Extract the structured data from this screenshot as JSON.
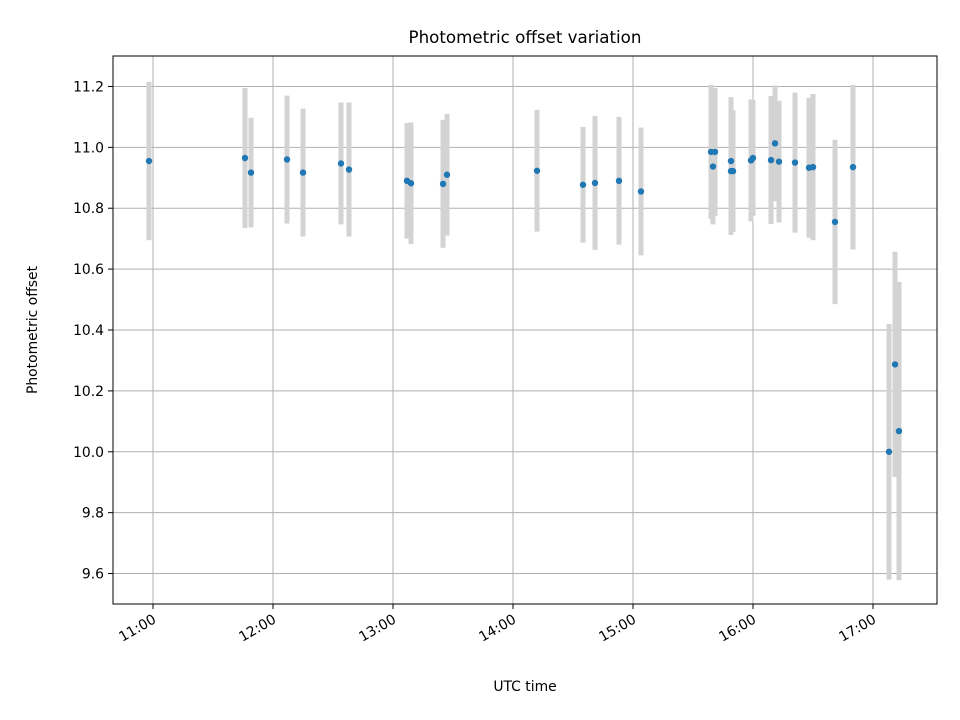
{
  "chart_data": {
    "type": "scatter",
    "title": "Photometric offset variation",
    "xlabel": "UTC time",
    "ylabel": "Photometric offset",
    "x_axis": "time",
    "x_ticks": [
      "11:00",
      "12:00",
      "13:00",
      "14:00",
      "15:00",
      "16:00",
      "17:00"
    ],
    "y_ticks": [
      9.6,
      9.8,
      10.0,
      10.2,
      10.4,
      10.6,
      10.8,
      11.0,
      11.2
    ],
    "xlim": [
      "10:40",
      "17:32"
    ],
    "ylim": [
      9.5,
      11.3
    ],
    "grid": true,
    "marker_color": "#1f77b4",
    "errorbar_color": "#d3d3d3",
    "points": [
      {
        "x": "10:58",
        "y": 10.955,
        "err": 0.26
      },
      {
        "x": "11:46",
        "y": 10.965,
        "err": 0.23
      },
      {
        "x": "11:49",
        "y": 10.917,
        "err": 0.18
      },
      {
        "x": "12:07",
        "y": 10.96,
        "err": 0.21
      },
      {
        "x": "12:15",
        "y": 10.917,
        "err": 0.21
      },
      {
        "x": "12:34",
        "y": 10.947,
        "err": 0.2
      },
      {
        "x": "12:38",
        "y": 10.927,
        "err": 0.22
      },
      {
        "x": "13:07",
        "y": 10.89,
        "err": 0.19
      },
      {
        "x": "13:09",
        "y": 10.882,
        "err": 0.2
      },
      {
        "x": "13:25",
        "y": 10.88,
        "err": 0.21
      },
      {
        "x": "13:27",
        "y": 10.91,
        "err": 0.2
      },
      {
        "x": "14:12",
        "y": 10.923,
        "err": 0.2
      },
      {
        "x": "14:35",
        "y": 10.877,
        "err": 0.19
      },
      {
        "x": "14:41",
        "y": 10.883,
        "err": 0.22
      },
      {
        "x": "14:53",
        "y": 10.89,
        "err": 0.21
      },
      {
        "x": "15:04",
        "y": 10.855,
        "err": 0.21
      },
      {
        "x": "15:39",
        "y": 10.985,
        "err": 0.22
      },
      {
        "x": "15:40",
        "y": 10.937,
        "err": 0.19
      },
      {
        "x": "15:41",
        "y": 10.985,
        "err": 0.21
      },
      {
        "x": "15:49",
        "y": 10.955,
        "err": 0.21
      },
      {
        "x": "15:49",
        "y": 10.922,
        "err": 0.21
      },
      {
        "x": "15:50",
        "y": 10.922,
        "err": 0.2
      },
      {
        "x": "15:59",
        "y": 10.957,
        "err": 0.2
      },
      {
        "x": "16:00",
        "y": 10.965,
        "err": 0.19
      },
      {
        "x": "16:09",
        "y": 10.958,
        "err": 0.21
      },
      {
        "x": "16:11",
        "y": 11.013,
        "err": 0.19
      },
      {
        "x": "16:13",
        "y": 10.953,
        "err": 0.2
      },
      {
        "x": "16:21",
        "y": 10.95,
        "err": 0.23
      },
      {
        "x": "16:28",
        "y": 10.933,
        "err": 0.23
      },
      {
        "x": "16:30",
        "y": 10.935,
        "err": 0.24
      },
      {
        "x": "16:41",
        "y": 10.755,
        "err": 0.27
      },
      {
        "x": "16:50",
        "y": 10.935,
        "err": 0.27
      },
      {
        "x": "17:08",
        "y": 10.0,
        "err": 0.42
      },
      {
        "x": "17:11",
        "y": 10.287,
        "err": 0.37
      },
      {
        "x": "17:13",
        "y": 10.068,
        "err": 0.49
      }
    ]
  }
}
